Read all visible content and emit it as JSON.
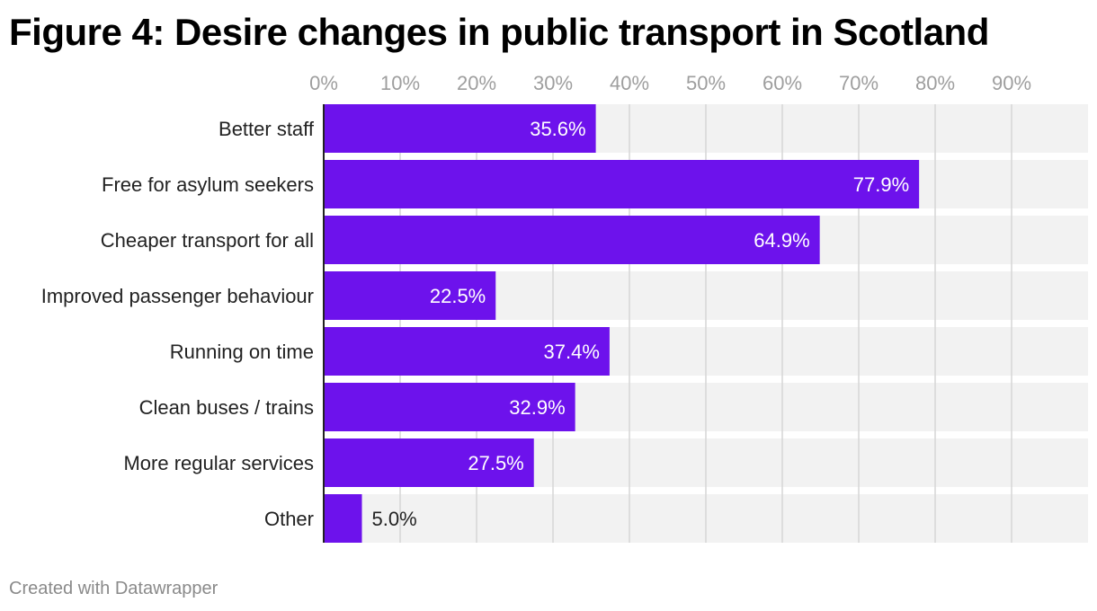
{
  "title": "Figure 4: Desire changes in public transport in Scotland",
  "footer": "Created with Datawrapper",
  "colors": {
    "bar": "#6d12ec",
    "bar_background": "#f2f2f2",
    "grid": "#d6d6d6",
    "tick_label": "#9e9e9e",
    "category_label": "#222222",
    "value_label_inside": "#ffffff",
    "value_label_outside": "#222222"
  },
  "chart_data": {
    "type": "bar",
    "orientation": "horizontal",
    "title": "Figure 4: Desire changes in public transport in Scotland",
    "categories": [
      "Better staff",
      "Free for asylum seekers",
      "Cheaper transport for all",
      "Improved passenger behaviour",
      "Running on time",
      "Clean buses / trains",
      "More regular services",
      "Other"
    ],
    "values": [
      35.6,
      77.9,
      64.9,
      22.5,
      37.4,
      32.9,
      27.5,
      5.0
    ],
    "value_labels": [
      "35.6%",
      "77.9%",
      "64.9%",
      "22.5%",
      "37.4%",
      "32.9%",
      "27.5%",
      "5.0%"
    ],
    "xlim": [
      0,
      100
    ],
    "x_ticks": [
      0,
      10,
      20,
      30,
      40,
      50,
      60,
      70,
      80,
      90
    ],
    "x_tick_labels": [
      "0%",
      "10%",
      "20%",
      "30%",
      "40%",
      "50%",
      "60%",
      "70%",
      "80%",
      "90%"
    ],
    "axis_position": "top",
    "grid": true,
    "legend": "none"
  }
}
